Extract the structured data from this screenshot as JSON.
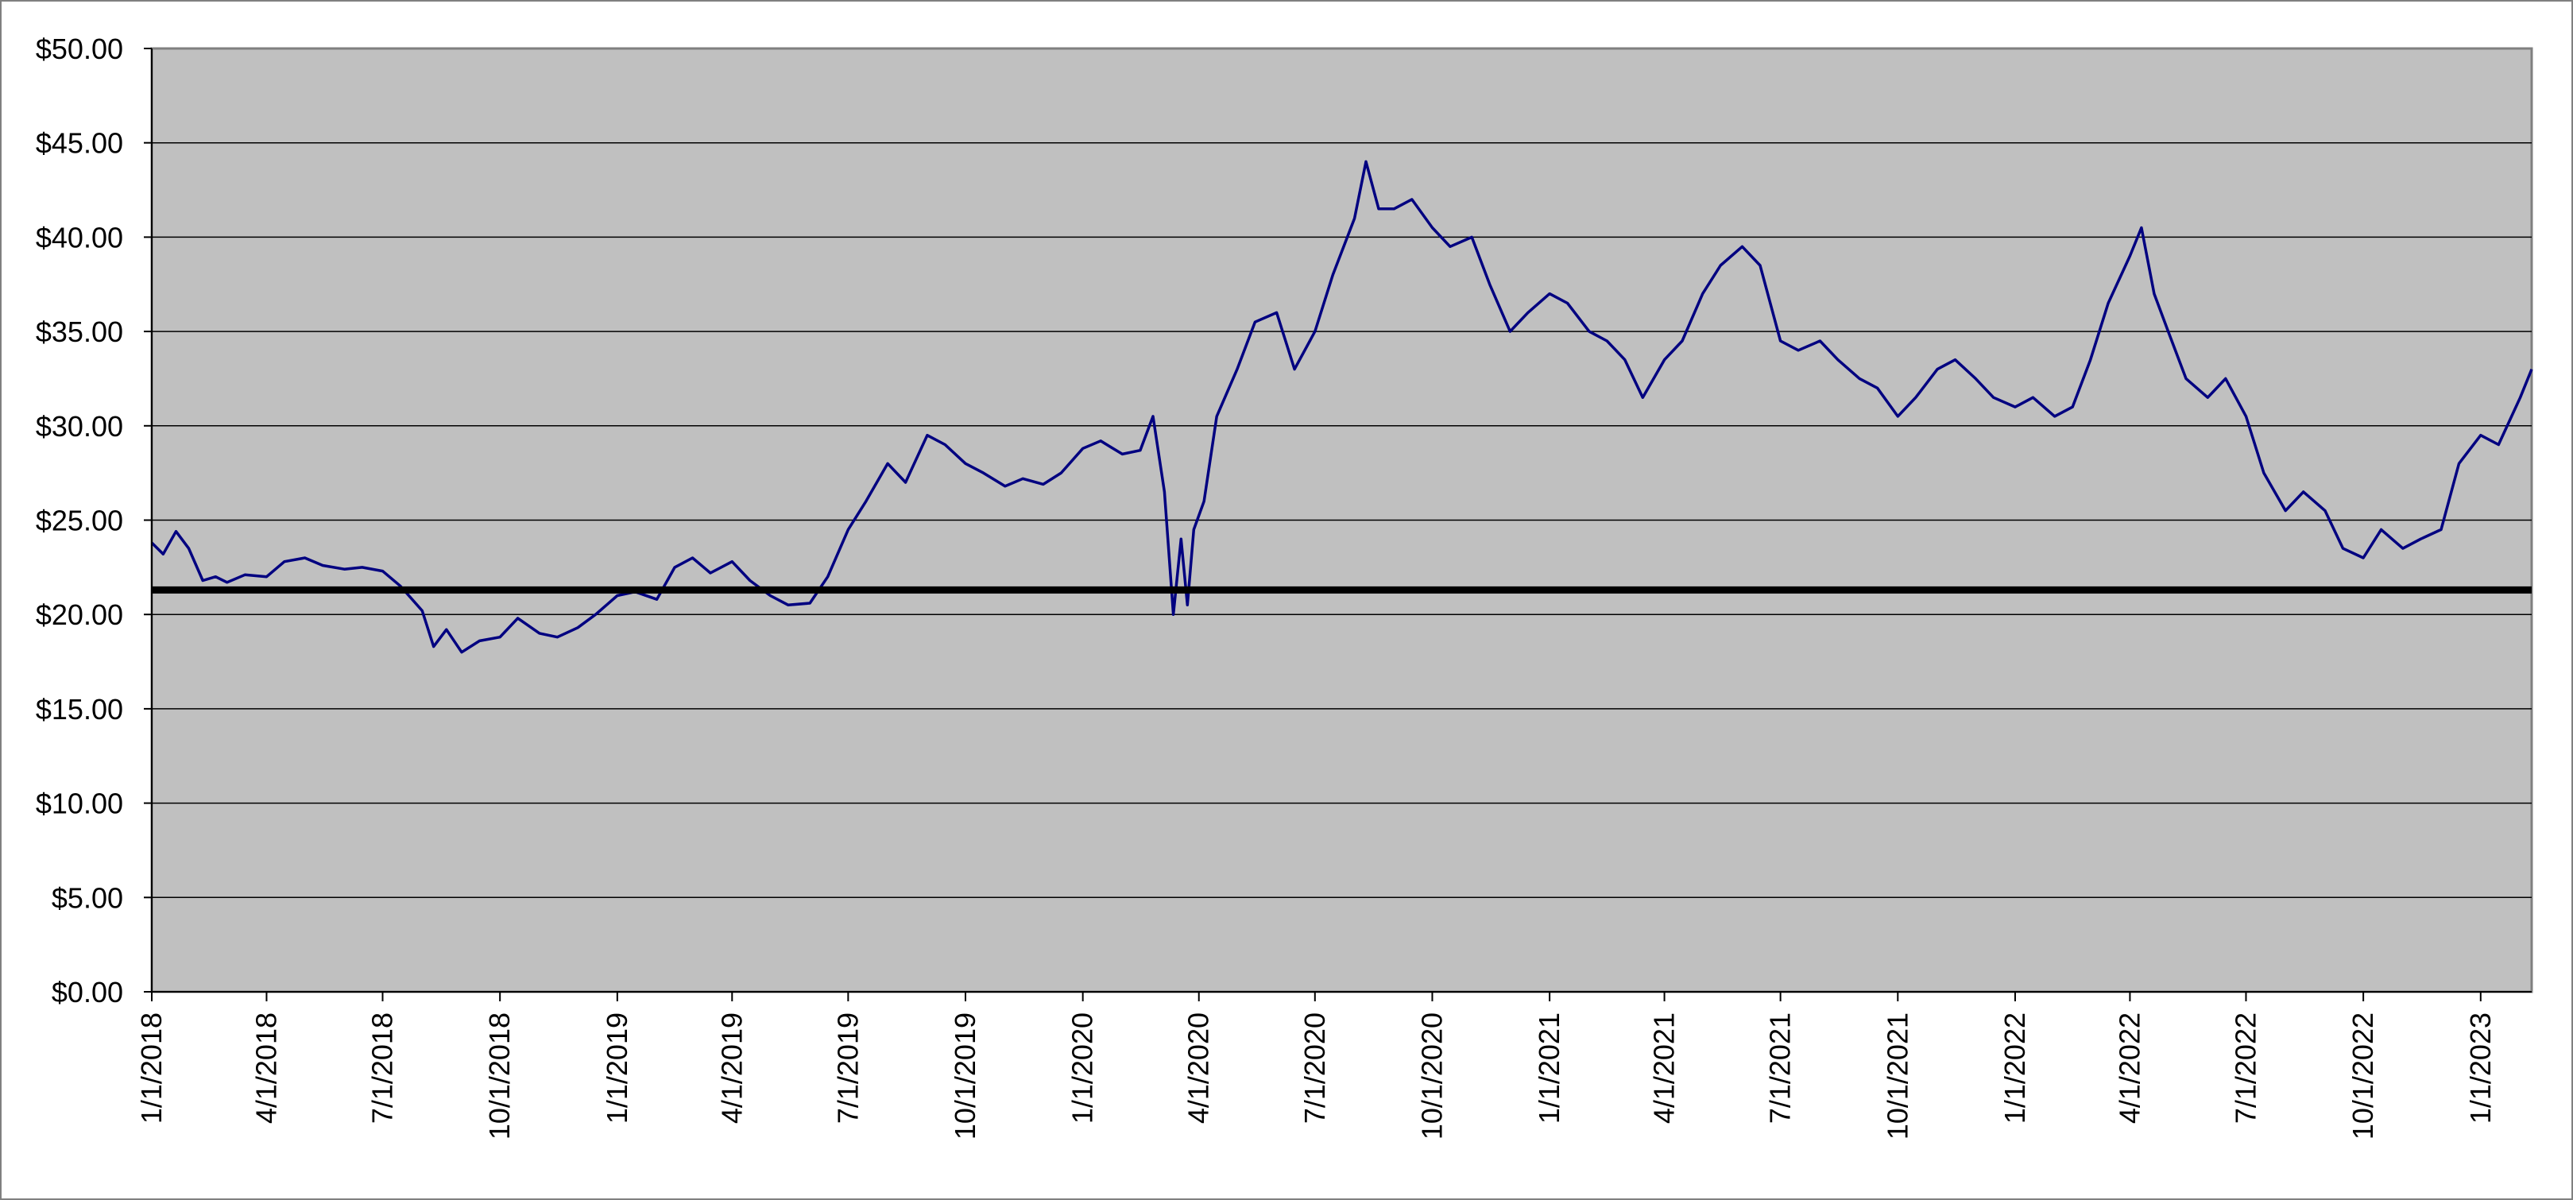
{
  "colors": {
    "plot_background": "#c0c0c0",
    "frame": "#808080",
    "gridline": "#000000",
    "series_line": "#000080",
    "reference_line": "#000000"
  },
  "chart_data": {
    "type": "line",
    "title": "",
    "xlabel": "",
    "ylabel": "",
    "x_range": [
      "2018-01-01",
      "2023-02-10"
    ],
    "ylim": [
      0,
      50
    ],
    "grid": "horizontal",
    "legend": "none",
    "y_ticks": [
      0,
      5,
      10,
      15,
      20,
      25,
      30,
      35,
      40,
      45,
      50
    ],
    "y_tick_labels": [
      "$0.00",
      "$5.00",
      "$10.00",
      "$15.00",
      "$20.00",
      "$25.00",
      "$30.00",
      "$35.00",
      "$40.00",
      "$45.00",
      "$50.00"
    ],
    "x_tick_dates": [
      "2018-01-01",
      "2018-04-01",
      "2018-07-01",
      "2018-10-01",
      "2019-01-01",
      "2019-04-01",
      "2019-07-01",
      "2019-10-01",
      "2020-01-01",
      "2020-04-01",
      "2020-07-01",
      "2020-10-01",
      "2021-01-01",
      "2021-04-01",
      "2021-07-01",
      "2021-10-01",
      "2022-01-01",
      "2022-04-01",
      "2022-07-01",
      "2022-10-01",
      "2023-01-01"
    ],
    "x_tick_labels": [
      "1/1/2018",
      "4/1/2018",
      "7/1/2018",
      "10/1/2018",
      "1/1/2019",
      "4/1/2019",
      "7/1/2019",
      "10/1/2019",
      "1/1/2020",
      "4/1/2020",
      "7/1/2020",
      "10/1/2020",
      "1/1/2021",
      "4/1/2021",
      "7/1/2021",
      "10/1/2021",
      "1/1/2022",
      "4/1/2022",
      "7/1/2022",
      "10/1/2022",
      "1/1/2023"
    ],
    "reference_line": {
      "y": 21.3
    },
    "series": [
      {
        "x": [
          "2018-01-01",
          "2018-01-10",
          "2018-01-20",
          "2018-01-30",
          "2018-02-10",
          "2018-02-20",
          "2018-03-01",
          "2018-03-15",
          "2018-04-01",
          "2018-04-15",
          "2018-05-01",
          "2018-05-15",
          "2018-06-01",
          "2018-06-15",
          "2018-07-01",
          "2018-07-15",
          "2018-08-01",
          "2018-08-10",
          "2018-08-20",
          "2018-09-01",
          "2018-09-15",
          "2018-10-01",
          "2018-10-15",
          "2018-11-01",
          "2018-11-15",
          "2018-12-01",
          "2018-12-15",
          "2019-01-01",
          "2019-01-15",
          "2019-02-01",
          "2019-02-15",
          "2019-03-01",
          "2019-03-15",
          "2019-04-01",
          "2019-04-15",
          "2019-05-01",
          "2019-05-15",
          "2019-06-01",
          "2019-06-15",
          "2019-07-01",
          "2019-07-15",
          "2019-08-01",
          "2019-08-15",
          "2019-09-01",
          "2019-09-15",
          "2019-10-01",
          "2019-10-15",
          "2019-11-01",
          "2019-11-15",
          "2019-12-01",
          "2019-12-15",
          "2020-01-01",
          "2020-01-15",
          "2020-02-01",
          "2020-02-15",
          "2020-02-25",
          "2020-03-05",
          "2020-03-12",
          "2020-03-18",
          "2020-03-23",
          "2020-03-28",
          "2020-04-05",
          "2020-04-15",
          "2020-05-01",
          "2020-05-15",
          "2020-06-01",
          "2020-06-15",
          "2020-07-01",
          "2020-07-15",
          "2020-08-01",
          "2020-08-10",
          "2020-08-20",
          "2020-09-01",
          "2020-09-15",
          "2020-10-01",
          "2020-10-15",
          "2020-11-01",
          "2020-11-15",
          "2020-12-01",
          "2020-12-15",
          "2021-01-01",
          "2021-01-15",
          "2021-02-01",
          "2021-02-15",
          "2021-03-01",
          "2021-03-15",
          "2021-04-01",
          "2021-04-15",
          "2021-05-01",
          "2021-05-15",
          "2021-06-01",
          "2021-06-15",
          "2021-07-01",
          "2021-07-15",
          "2021-08-01",
          "2021-08-15",
          "2021-09-01",
          "2021-09-15",
          "2021-10-01",
          "2021-10-15",
          "2021-11-01",
          "2021-11-15",
          "2021-12-01",
          "2021-12-15",
          "2022-01-01",
          "2022-01-15",
          "2022-02-01",
          "2022-02-15",
          "2022-03-01",
          "2022-03-15",
          "2022-04-01",
          "2022-04-10",
          "2022-04-20",
          "2022-05-01",
          "2022-05-15",
          "2022-06-01",
          "2022-06-15",
          "2022-07-01",
          "2022-07-15",
          "2022-08-01",
          "2022-08-15",
          "2022-09-01",
          "2022-09-15",
          "2022-10-01",
          "2022-10-15",
          "2022-11-01",
          "2022-11-15",
          "2022-12-01",
          "2022-12-15",
          "2023-01-01",
          "2023-01-15",
          "2023-02-01",
          "2023-02-10"
        ],
        "y": [
          23.8,
          23.2,
          24.4,
          23.5,
          21.8,
          22.0,
          21.7,
          22.1,
          22.0,
          22.8,
          23.0,
          22.6,
          22.4,
          22.5,
          22.3,
          21.5,
          20.2,
          18.3,
          19.2,
          18.0,
          18.6,
          18.8,
          19.8,
          19.0,
          18.8,
          19.3,
          20.0,
          21.0,
          21.2,
          20.8,
          22.5,
          23.0,
          22.2,
          22.8,
          21.8,
          21.0,
          20.5,
          20.6,
          22.0,
          24.5,
          26.0,
          28.0,
          27.0,
          29.5,
          29.0,
          28.0,
          27.5,
          26.8,
          27.2,
          26.9,
          27.5,
          28.8,
          29.2,
          28.5,
          28.7,
          30.5,
          26.5,
          20.0,
          24.0,
          20.5,
          24.5,
          26.0,
          30.5,
          33.0,
          35.5,
          36.0,
          33.0,
          35.0,
          38.0,
          41.0,
          44.0,
          41.5,
          41.5,
          42.0,
          40.5,
          39.5,
          40.0,
          37.5,
          35.0,
          36.0,
          37.0,
          36.5,
          35.0,
          34.5,
          33.5,
          31.5,
          33.5,
          34.5,
          37.0,
          38.5,
          39.5,
          38.5,
          34.5,
          34.0,
          34.5,
          33.5,
          32.5,
          32.0,
          30.5,
          31.5,
          33.0,
          33.5,
          32.5,
          31.5,
          31.0,
          31.5,
          30.5,
          31.0,
          33.5,
          36.5,
          39.0,
          40.5,
          37.0,
          35.0,
          32.5,
          31.5,
          32.5,
          30.5,
          27.5,
          25.5,
          26.5,
          25.5,
          23.5,
          23.0,
          24.5,
          23.5,
          24.0,
          24.5,
          28.0,
          29.5,
          29.0,
          31.5,
          33.0
        ]
      }
    ]
  }
}
